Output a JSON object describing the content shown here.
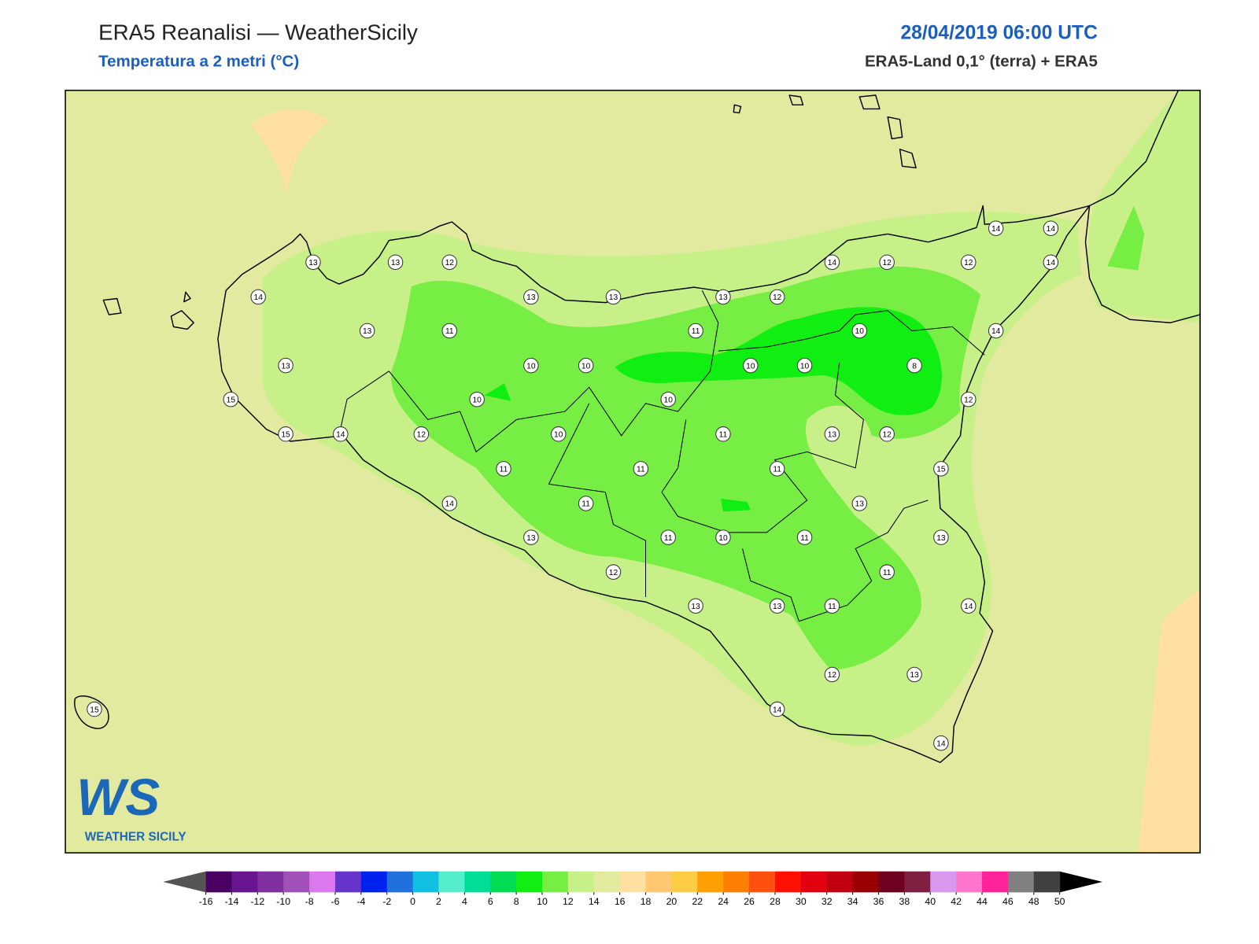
{
  "header": {
    "title": "ERA5 Reanalisi — WeatherSicily",
    "subtitle": "Temperatura a 2 metri (°C)",
    "datetime": "28/04/2019 06:00 UTC",
    "source": "ERA5-Land 0,1° (terra) + ERA5"
  },
  "stations": [
    13,
    13,
    12,
    14,
    13,
    11,
    13,
    13,
    13,
    15,
    15,
    14,
    12,
    10,
    10,
    10,
    11,
    10,
    14,
    13,
    11,
    12,
    11,
    10,
    11,
    13,
    12,
    10,
    10,
    11,
    11,
    10,
    13,
    11,
    13,
    11,
    14,
    12,
    12,
    14,
    14,
    14,
    10,
    8,
    14,
    12,
    13,
    12,
    15,
    13,
    13,
    11,
    11,
    14,
    12,
    13,
    14,
    14,
    15
  ],
  "colorbar": {
    "ticks": [
      -16,
      -14,
      -12,
      -10,
      -8,
      -6,
      -4,
      -2,
      0,
      2,
      4,
      6,
      8,
      10,
      12,
      14,
      16,
      18,
      20,
      22,
      24,
      26,
      28,
      30,
      32,
      34,
      36,
      38,
      40,
      42,
      44,
      46,
      48,
      50
    ],
    "colors": [
      "#4a0060",
      "#6a1590",
      "#8030a0",
      "#a050b8",
      "#dd77ee",
      "#6633cc",
      "#0022ee",
      "#2070dd",
      "#10c0e0",
      "#55eecc",
      "#00dd99",
      "#00dd55",
      "#11ee11",
      "#77ee44",
      "#c8f088",
      "#e2eaa0",
      "#ffe0a0",
      "#ffc870",
      "#ffcc44",
      "#ffa000",
      "#ff8000",
      "#ff5010",
      "#ff1000",
      "#e00010",
      "#c00010",
      "#990000",
      "#700020",
      "#802040",
      "#d898ee",
      "#ff77cc",
      "#ff2299",
      "#808080",
      "#404040"
    ],
    "under_color": "#555555",
    "over_color": "#000000"
  },
  "logo": {
    "mark": "WS",
    "text": "WEATHER SICILY"
  }
}
